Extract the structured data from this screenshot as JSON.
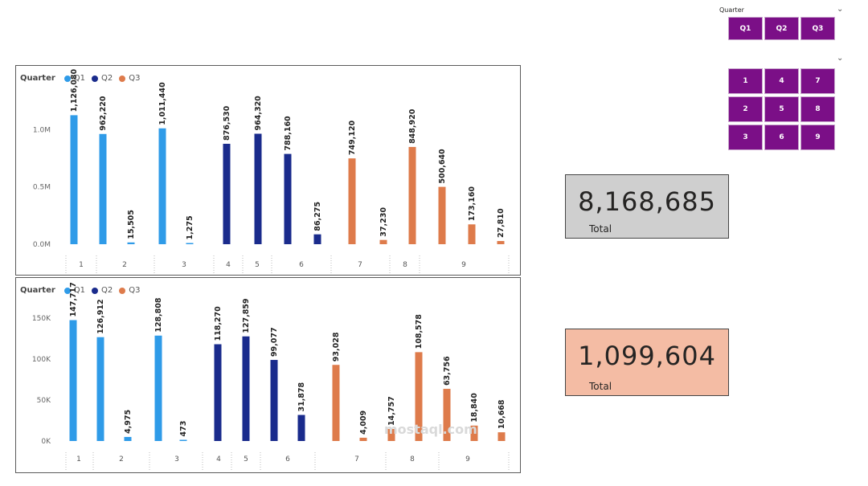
{
  "chart_data": [
    {
      "type": "bar",
      "legend_title": "Quarter",
      "legend_placement": "top-left",
      "series_colors": {
        "Q1": "#2f9be8",
        "Q2": "#1a2b8c",
        "Q3": "#de7b4b"
      },
      "series_names": [
        "Q1",
        "Q2",
        "Q3"
      ],
      "categories": [
        "1",
        "2",
        "3",
        "4",
        "5",
        "6",
        "7",
        "8",
        "9"
      ],
      "ylim": [
        0,
        1150000
      ],
      "ytick_values": [
        0,
        500000,
        1000000
      ],
      "ytick_labels": [
        "0.0M",
        "0.5M",
        "1.0M"
      ],
      "bars": [
        {
          "category": "1",
          "series": "Q1",
          "value": 1126080,
          "label": "1,126,080"
        },
        {
          "category": "2",
          "series": "Q1",
          "value": 962220,
          "label": "962,220"
        },
        {
          "category": "2",
          "series": "Q1",
          "value": 15505,
          "label": "15,505"
        },
        {
          "category": "3",
          "series": "Q1",
          "value": 1011440,
          "label": "1,011,440"
        },
        {
          "category": "3",
          "series": "Q1",
          "value": 1275,
          "label": "1,275"
        },
        {
          "category": "4",
          "series": "Q2",
          "value": 876530,
          "label": "876,530"
        },
        {
          "category": "5",
          "series": "Q2",
          "value": 964320,
          "label": "964,320"
        },
        {
          "category": "6",
          "series": "Q2",
          "value": 788160,
          "label": "788,160"
        },
        {
          "category": "6",
          "series": "Q2",
          "value": 86275,
          "label": "86,275"
        },
        {
          "category": "7",
          "series": "Q3",
          "value": 749120,
          "label": "749,120"
        },
        {
          "category": "7",
          "series": "Q3",
          "value": 37230,
          "label": "37,230"
        },
        {
          "category": "8",
          "series": "Q3",
          "value": 848920,
          "label": "848,920"
        },
        {
          "category": "8",
          "series": "Q3",
          "value": 500640,
          "label": "500,640"
        },
        {
          "category": "9",
          "series": "Q3",
          "value": 173160,
          "label": "173,160"
        },
        {
          "category": "9",
          "series": "Q3",
          "value": 27810,
          "label": "27,810"
        }
      ]
    },
    {
      "type": "bar",
      "legend_title": "Quarter",
      "legend_placement": "top-left",
      "series_colors": {
        "Q1": "#2f9be8",
        "Q2": "#1a2b8c",
        "Q3": "#de7b4b"
      },
      "series_names": [
        "Q1",
        "Q2",
        "Q3"
      ],
      "categories": [
        "1",
        "2",
        "3",
        "4",
        "5",
        "6",
        "7",
        "8",
        "9"
      ],
      "ylim": [
        0,
        160000
      ],
      "ytick_values": [
        0,
        50000,
        100000,
        150000
      ],
      "ytick_labels": [
        "0K",
        "50K",
        "100K",
        "150K"
      ],
      "bars": [
        {
          "category": "1",
          "series": "Q1",
          "value": 147717,
          "label": "147,717"
        },
        {
          "category": "2",
          "series": "Q1",
          "value": 126912,
          "label": "126,912"
        },
        {
          "category": "2",
          "series": "Q1",
          "value": 4975,
          "label": "4,975"
        },
        {
          "category": "3",
          "series": "Q1",
          "value": 128808,
          "label": "128,808"
        },
        {
          "category": "3",
          "series": "Q1",
          "value": 473,
          "label": "473"
        },
        {
          "category": "4",
          "series": "Q2",
          "value": 118270,
          "label": "118,270"
        },
        {
          "category": "5",
          "series": "Q2",
          "value": 127859,
          "label": "127,859"
        },
        {
          "category": "6",
          "series": "Q2",
          "value": 99077,
          "label": "99,077"
        },
        {
          "category": "6",
          "series": "Q2",
          "value": 31878,
          "label": "31,878"
        },
        {
          "category": "7",
          "series": "Q3",
          "value": 93028,
          "label": "93,028"
        },
        {
          "category": "7",
          "series": "Q3",
          "value": 4009,
          "label": "4,009"
        },
        {
          "category": "8",
          "series": "Q3",
          "value": 14757,
          "label": "14,757"
        },
        {
          "category": "8",
          "series": "Q3",
          "value": 108578,
          "label": "108,578"
        },
        {
          "category": "9",
          "series": "Q3",
          "value": 63756,
          "label": "63,756"
        },
        {
          "category": "9",
          "series": "Q3",
          "value": 18840,
          "label": "18,840"
        },
        {
          "category": "9",
          "series": "Q3",
          "value": 10668,
          "label": "10,668"
        }
      ]
    }
  ],
  "cards": {
    "top": {
      "value": "8,168,685",
      "label": "Total",
      "color": "#cfcfcf"
    },
    "bottom": {
      "value": "1,099,604",
      "label": "Total",
      "color": "#f4bca4"
    }
  },
  "slicers": {
    "quarter": {
      "title": "Quarter",
      "options": [
        "Q1",
        "Q2",
        "Q3"
      ]
    },
    "month": {
      "options": [
        "1",
        "4",
        "7",
        "2",
        "5",
        "8",
        "3",
        "6",
        "9"
      ]
    },
    "button_color": "#7b0f87"
  },
  "watermark": "mostaql.com"
}
